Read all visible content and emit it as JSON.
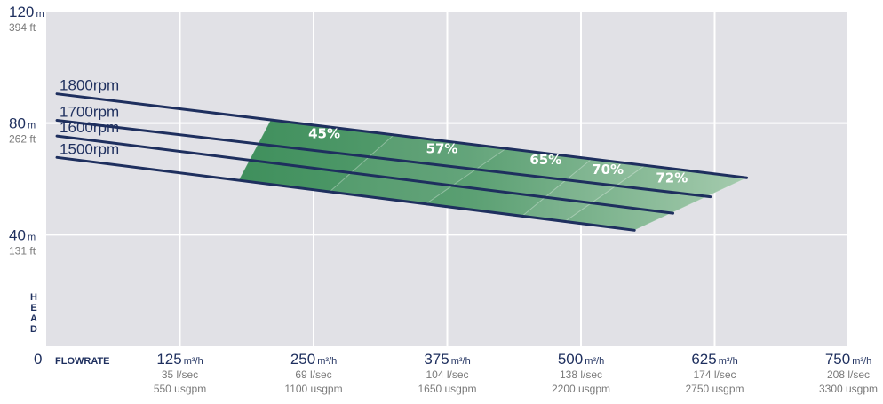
{
  "chart_data": {
    "type": "line",
    "y_ticks": [
      {
        "value": 120,
        "main": "120",
        "unit": "m",
        "sub": "394 ft"
      },
      {
        "value": 80,
        "main": "80",
        "unit": "m",
        "sub": "262 ft"
      },
      {
        "value": 40,
        "main": "40",
        "unit": "m",
        "sub": "131 ft"
      },
      {
        "value": 0,
        "main": "0",
        "unit": "",
        "sub": ""
      }
    ],
    "x_ticks": [
      {
        "value": 125,
        "main": "125",
        "unit": "m³/h",
        "sub1": "35 l/sec",
        "sub2": "550 usgpm"
      },
      {
        "value": 250,
        "main": "250",
        "unit": "m³/h",
        "sub1": "69 l/sec",
        "sub2": "1100 usgpm"
      },
      {
        "value": 375,
        "main": "375",
        "unit": "m³/h",
        "sub1": "104 l/sec",
        "sub2": "1650 usgpm"
      },
      {
        "value": 500,
        "main": "500",
        "unit": "m³/h",
        "sub1": "138 l/sec",
        "sub2": "2200 usgpm"
      },
      {
        "value": 625,
        "main": "625",
        "unit": "m³/h",
        "sub1": "174 l/sec",
        "sub2": "2750 usgpm"
      },
      {
        "value": 750,
        "main": "750",
        "unit": "m³/h",
        "sub1": "208 l/sec",
        "sub2": "3300 usgpm"
      }
    ],
    "xlabel": "FLOWRATE",
    "ylabel": "HEAD",
    "xlim": [
      0,
      750
    ],
    "ylim": [
      0,
      120
    ],
    "grid": true,
    "series": [
      {
        "name": "1800rpm",
        "x": [
          10,
          655
        ],
        "y": [
          90.5,
          60.4
        ]
      },
      {
        "name": "1700rpm",
        "x": [
          10,
          621
        ],
        "y": [
          81.0,
          53.6
        ]
      },
      {
        "name": "1600rpm",
        "x": [
          10,
          586
        ],
        "y": [
          75.4,
          47.7
        ]
      },
      {
        "name": "1500rpm",
        "x": [
          10,
          550
        ],
        "y": [
          67.7,
          41.6
        ]
      }
    ],
    "efficiency_zones": [
      {
        "label": "45%",
        "lx": 260,
        "ly": 74.6
      },
      {
        "label": "57%",
        "lx": 370,
        "ly": 69.2
      },
      {
        "label": "65%",
        "lx": 467,
        "ly": 65.3
      },
      {
        "label": "70%",
        "lx": 525,
        "ly": 61.7
      },
      {
        "label": "72%",
        "lx": 585,
        "ly": 58.8
      }
    ],
    "efficiency_boundaries": [
      {
        "top_x": 210,
        "bottom_x": 180
      },
      {
        "top_x": 325,
        "bottom_x": 265
      },
      {
        "top_x": 430,
        "bottom_x": 355
      },
      {
        "top_x": 510,
        "bottom_x": 445
      },
      {
        "top_x": 560,
        "bottom_x": 485
      },
      {
        "top_x": 655,
        "bottom_x": 550
      }
    ],
    "colors": {
      "background": "#e1e1e6",
      "grid": "#ffffff",
      "curve": "#1e2f5e",
      "zone_dark": "#3f8f5c",
      "zone_light": "#a5cbae",
      "text_dark": "#1e2f5e",
      "text_grey": "#7a7a7a"
    }
  }
}
